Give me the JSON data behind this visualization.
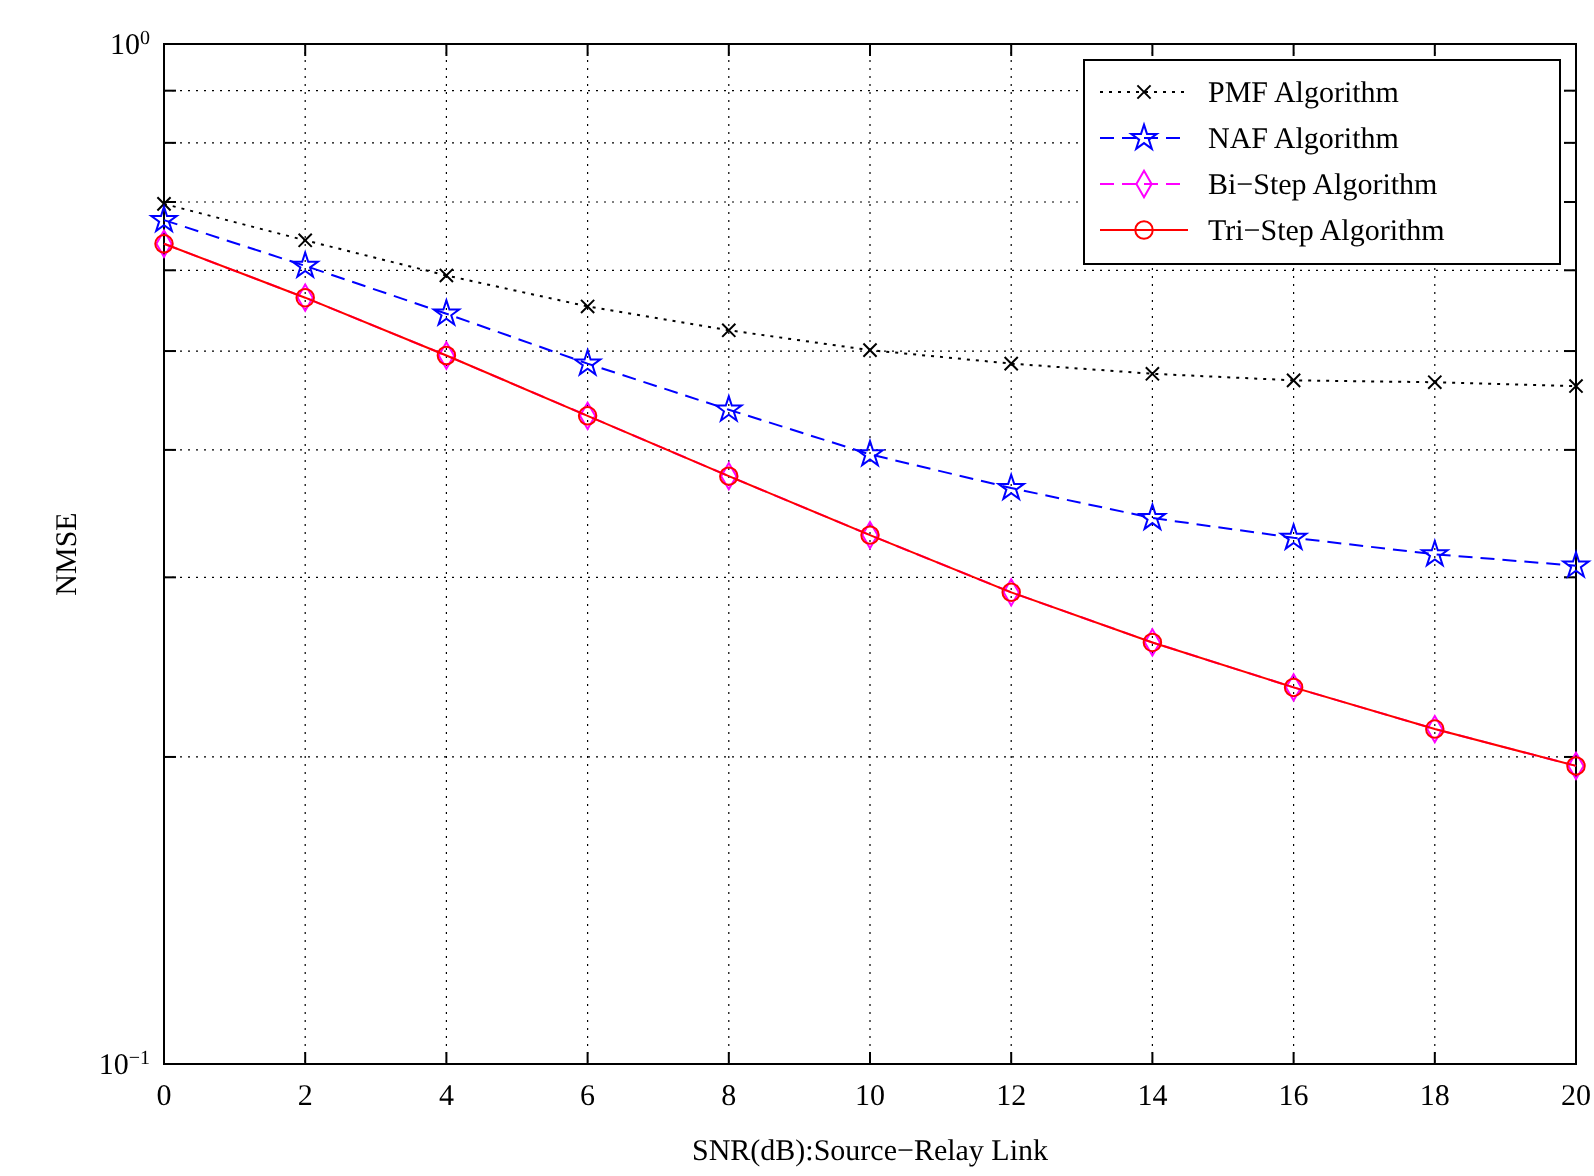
{
  "chart_data": {
    "type": "line",
    "xlabel": "SNR(dB):Source−Relay Link",
    "ylabel": "NMSE",
    "x": [
      0,
      2,
      4,
      6,
      8,
      10,
      12,
      14,
      16,
      18,
      20
    ],
    "series": [
      {
        "name": "PMF Algorithm",
        "color": "#000000",
        "marker": "cross",
        "line_style": "dotted",
        "values": [
          0.697,
          0.642,
          0.593,
          0.553,
          0.524,
          0.501,
          0.486,
          0.475,
          0.468,
          0.466,
          0.462
        ]
      },
      {
        "name": "NAF Algorithm",
        "color": "#0000ff",
        "marker": "star",
        "line_style": "dashed",
        "values": [
          0.672,
          0.606,
          0.544,
          0.486,
          0.438,
          0.396,
          0.367,
          0.343,
          0.328,
          0.316,
          0.308
        ]
      },
      {
        "name": "Bi−Step Algorithm",
        "color": "#ff00ff",
        "marker": "diamond",
        "line_style": "dashed",
        "values": [
          0.637,
          0.564,
          0.495,
          0.432,
          0.377,
          0.33,
          0.29,
          0.259,
          0.234,
          0.213,
          0.196
        ]
      },
      {
        "name": "Tri−Step Algorithm",
        "color": "#ff0000",
        "marker": "circle",
        "line_style": "solid",
        "values": [
          0.637,
          0.564,
          0.495,
          0.432,
          0.377,
          0.33,
          0.29,
          0.259,
          0.234,
          0.213,
          0.196
        ]
      }
    ],
    "xlim": [
      0,
      20
    ],
    "xticks": [
      0,
      2,
      4,
      6,
      8,
      10,
      12,
      14,
      16,
      18,
      20
    ],
    "ylim": [
      0.1,
      1
    ],
    "log": true,
    "yticks": [
      {
        "value": 0.1,
        "label": "10$^{−1}$"
      },
      {
        "value": 0.2,
        "label": null
      },
      {
        "value": 0.3,
        "label": null
      },
      {
        "value": 0.4,
        "label": null
      },
      {
        "value": 0.5,
        "label": null
      },
      {
        "value": 0.6,
        "label": null
      },
      {
        "value": 0.7,
        "label": null
      },
      {
        "value": 0.8,
        "label": null
      },
      {
        "value": 0.9,
        "label": null
      },
      {
        "value": 1,
        "label": "10$^{0}$"
      }
    ],
    "grid": true,
    "legend": "top right"
  }
}
